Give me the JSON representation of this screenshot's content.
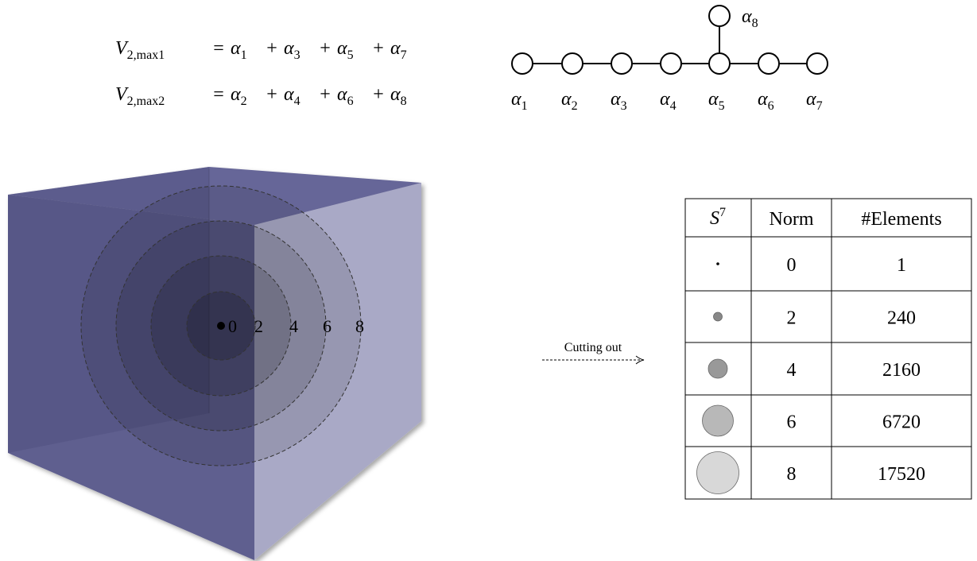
{
  "equations": [
    {
      "lhs": {
        "symbol": "V",
        "subscript": "2,max1"
      },
      "operator": "=",
      "joiner": "+",
      "terms": [
        {
          "symbol": "α",
          "subscript": "1"
        },
        {
          "symbol": "α",
          "subscript": "3"
        },
        {
          "symbol": "α",
          "subscript": "5"
        },
        {
          "symbol": "α",
          "subscript": "7"
        }
      ]
    },
    {
      "lhs": {
        "symbol": "V",
        "subscript": "2,max2"
      },
      "operator": "=",
      "joiner": "+",
      "terms": [
        {
          "symbol": "α",
          "subscript": "2"
        },
        {
          "symbol": "α",
          "subscript": "4"
        },
        {
          "symbol": "α",
          "subscript": "6"
        },
        {
          "symbol": "α",
          "subscript": "8"
        }
      ]
    }
  ],
  "dynkin": {
    "nodes": [
      {
        "symbol": "α",
        "subscript": "1"
      },
      {
        "symbol": "α",
        "subscript": "2"
      },
      {
        "symbol": "α",
        "subscript": "3"
      },
      {
        "symbol": "α",
        "subscript": "4"
      },
      {
        "symbol": "α",
        "subscript": "5"
      },
      {
        "symbol": "α",
        "subscript": "6"
      },
      {
        "symbol": "α",
        "subscript": "7"
      },
      {
        "symbol": "α",
        "subscript": "8"
      }
    ]
  },
  "cube": {
    "shell_labels": [
      "0",
      "2",
      "4",
      "6",
      "8"
    ]
  },
  "arrow": {
    "label": "Cutting out"
  },
  "table": {
    "header": [
      {
        "symbol": "S",
        "superscript": "7"
      },
      "Norm",
      "#Elements"
    ],
    "rows": [
      [
        0,
        1
      ],
      [
        2,
        240
      ],
      [
        4,
        2160
      ],
      [
        6,
        6720
      ],
      [
        8,
        17520
      ]
    ]
  }
}
